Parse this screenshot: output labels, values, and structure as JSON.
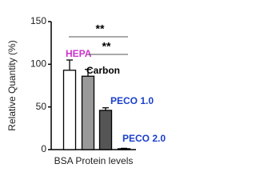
{
  "chart_data": {
    "type": "bar",
    "y_label": "Relative Quantity (%)",
    "x_label": "BSA Protein levels",
    "categories": [
      "HEPA",
      "Carbon",
      "PECO 1.0",
      "PECO 2.0"
    ],
    "values": [
      93,
      86,
      46,
      1
    ],
    "errors": [
      12,
      8,
      3,
      0.5
    ],
    "colors": [
      "#ffffff",
      "#999999",
      "#555555",
      "#333333"
    ],
    "label_colors": [
      "#cc33cc",
      "#000000",
      "#1a3fcc",
      "#1a3fcc"
    ],
    "ylim": [
      0,
      150
    ],
    "yticks": [
      0,
      50,
      100,
      150
    ],
    "annotations": [
      "**",
      "**"
    ]
  }
}
